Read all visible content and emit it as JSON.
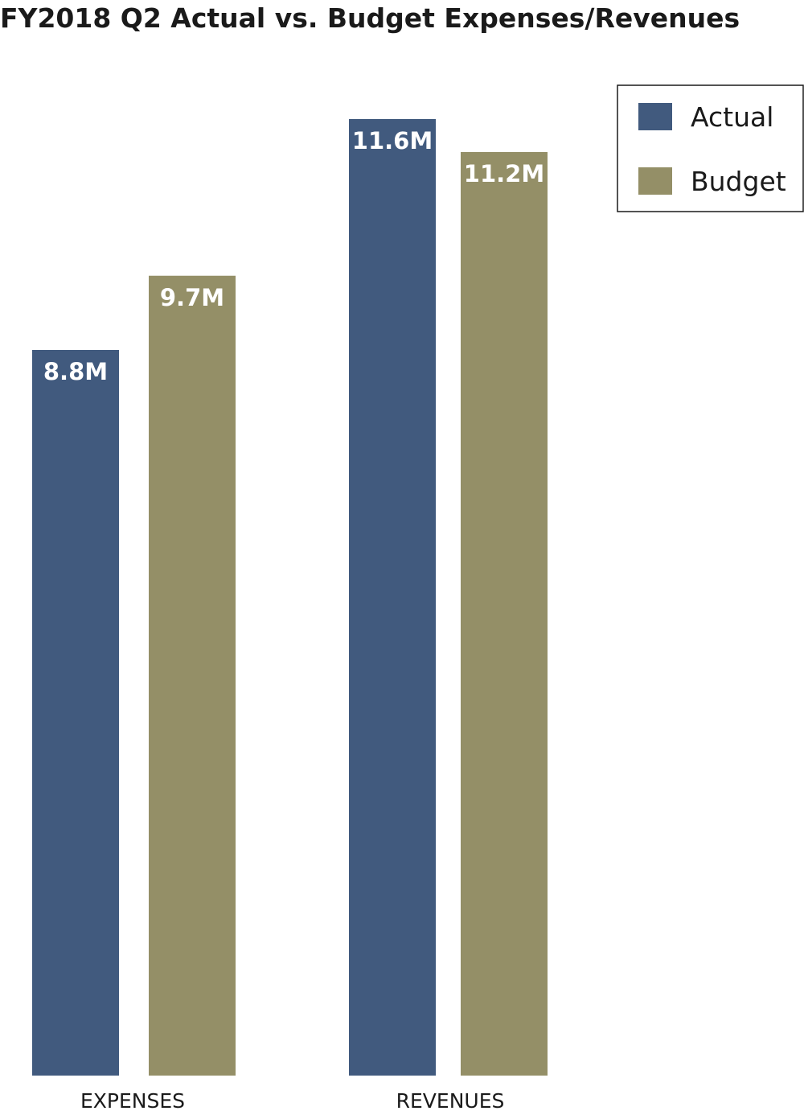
{
  "chart_data": {
    "type": "bar",
    "title": "FY2018 Q2 Actual vs. Budget Expenses/Revenues",
    "categories": [
      "EXPENSES",
      "REVENUES"
    ],
    "series": [
      {
        "name": "Actual",
        "values": [
          8.8,
          11.6
        ],
        "labels": [
          "8.8M",
          "11.6M"
        ],
        "color": "#415a7e"
      },
      {
        "name": "Budget",
        "values": [
          9.7,
          11.2
        ],
        "labels": [
          "9.7M",
          "11.2M"
        ],
        "color": "#948f67"
      }
    ],
    "xlabel": "",
    "ylabel": "",
    "ylim": [
      0,
      12
    ],
    "grid": false,
    "legend_position": "top-right"
  }
}
